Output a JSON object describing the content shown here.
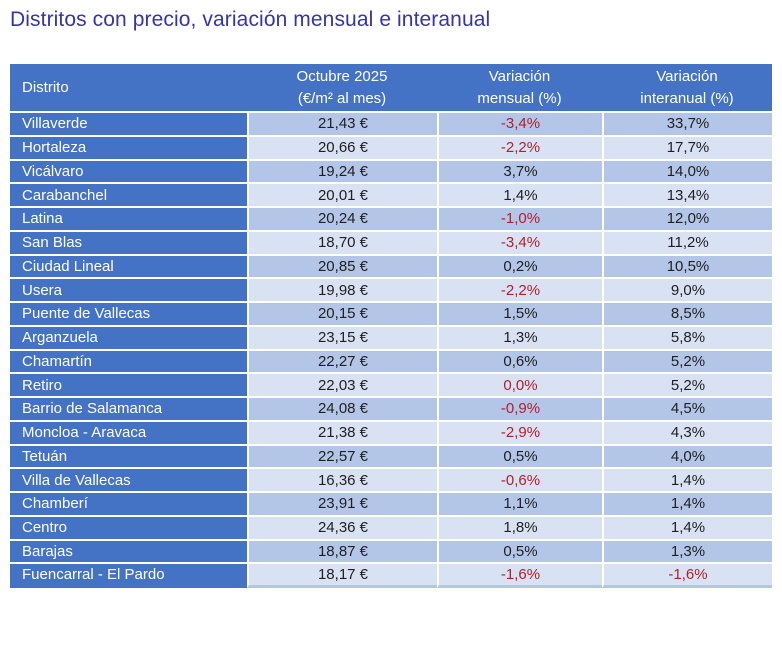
{
  "title": "Distritos con precio, variación mensual e interanual",
  "colors": {
    "title": "#3434AE",
    "header_bg": "#4472C4",
    "header_text": "#FFFFFF",
    "district_col_bg": "#4472C4",
    "row_band_dark": "#B4C6E7",
    "row_band_light": "#D9E2F3",
    "value_text": "#1F1F1F",
    "negative_value": "#B0202A"
  },
  "table": {
    "columns": [
      {
        "label": "Distrito",
        "sublabel": ""
      },
      {
        "label": "Octubre 2025",
        "sublabel": "(€/m² al mes)"
      },
      {
        "label": "Variación",
        "sublabel": "mensual (%)"
      },
      {
        "label": "Variación",
        "sublabel": "interanual (%)"
      }
    ],
    "rows": [
      {
        "district": "Villaverde",
        "price": "21,43 €",
        "monthly": "-3,4%",
        "monthly_red": true,
        "yearly": "33,7%",
        "yearly_red": false
      },
      {
        "district": "Hortaleza",
        "price": "20,66 €",
        "monthly": "-2,2%",
        "monthly_red": true,
        "yearly": "17,7%",
        "yearly_red": false
      },
      {
        "district": "Vicálvaro",
        "price": "19,24 €",
        "monthly": "3,7%",
        "monthly_red": false,
        "yearly": "14,0%",
        "yearly_red": false
      },
      {
        "district": "Carabanchel",
        "price": "20,01 €",
        "monthly": "1,4%",
        "monthly_red": false,
        "yearly": "13,4%",
        "yearly_red": false
      },
      {
        "district": "Latina",
        "price": "20,24 €",
        "monthly": "-1,0%",
        "monthly_red": true,
        "yearly": "12,0%",
        "yearly_red": false
      },
      {
        "district": "San Blas",
        "price": "18,70 €",
        "monthly": "-3,4%",
        "monthly_red": true,
        "yearly": "11,2%",
        "yearly_red": false
      },
      {
        "district": "Ciudad Lineal",
        "price": "20,85 €",
        "monthly": "0,2%",
        "monthly_red": false,
        "yearly": "10,5%",
        "yearly_red": false
      },
      {
        "district": "Usera",
        "price": "19,98 €",
        "monthly": "-2,2%",
        "monthly_red": true,
        "yearly": "9,0%",
        "yearly_red": false
      },
      {
        "district": "Puente de Vallecas",
        "price": "20,15 €",
        "monthly": "1,5%",
        "monthly_red": false,
        "yearly": "8,5%",
        "yearly_red": false
      },
      {
        "district": "Arganzuela",
        "price": "23,15 €",
        "monthly": "1,3%",
        "monthly_red": false,
        "yearly": "5,8%",
        "yearly_red": false
      },
      {
        "district": "Chamartín",
        "price": "22,27 €",
        "monthly": "0,6%",
        "monthly_red": false,
        "yearly": "5,2%",
        "yearly_red": false
      },
      {
        "district": "Retiro",
        "price": "22,03 €",
        "monthly": "0,0%",
        "monthly_red": true,
        "yearly": "5,2%",
        "yearly_red": false
      },
      {
        "district": "Barrio de Salamanca",
        "price": "24,08 €",
        "monthly": "-0,9%",
        "monthly_red": true,
        "yearly": "4,5%",
        "yearly_red": false
      },
      {
        "district": "Moncloa - Aravaca",
        "price": "21,38 €",
        "monthly": "-2,9%",
        "monthly_red": true,
        "yearly": "4,3%",
        "yearly_red": false
      },
      {
        "district": "Tetuán",
        "price": "22,57 €",
        "monthly": "0,5%",
        "monthly_red": false,
        "yearly": "4,0%",
        "yearly_red": false
      },
      {
        "district": "Villa de Vallecas",
        "price": "16,36 €",
        "monthly": "-0,6%",
        "monthly_red": true,
        "yearly": "1,4%",
        "yearly_red": false
      },
      {
        "district": "Chamberí",
        "price": "23,91 €",
        "monthly": "1,1%",
        "monthly_red": false,
        "yearly": "1,4%",
        "yearly_red": false
      },
      {
        "district": "Centro",
        "price": "24,36 €",
        "monthly": "1,8%",
        "monthly_red": false,
        "yearly": "1,4%",
        "yearly_red": false
      },
      {
        "district": "Barajas",
        "price": "18,87 €",
        "monthly": "0,5%",
        "monthly_red": false,
        "yearly": "1,3%",
        "yearly_red": false
      },
      {
        "district": "Fuencarral - El Pardo",
        "price": "18,17 €",
        "monthly": "-1,6%",
        "monthly_red": true,
        "yearly": "-1,6%",
        "yearly_red": true
      }
    ]
  },
  "chart_data": {
    "type": "table",
    "title": "Distritos con precio, variación mensual e interanual",
    "columns": [
      "Distrito",
      "Octubre 2025 (€/m² al mes)",
      "Variación mensual (%)",
      "Variación interanual (%)"
    ],
    "rows": [
      [
        "Villaverde",
        21.43,
        -3.4,
        33.7
      ],
      [
        "Hortaleza",
        20.66,
        -2.2,
        17.7
      ],
      [
        "Vicálvaro",
        19.24,
        3.7,
        14.0
      ],
      [
        "Carabanchel",
        20.01,
        1.4,
        13.4
      ],
      [
        "Latina",
        20.24,
        -1.0,
        12.0
      ],
      [
        "San Blas",
        18.7,
        -3.4,
        11.2
      ],
      [
        "Ciudad Lineal",
        20.85,
        0.2,
        10.5
      ],
      [
        "Usera",
        19.98,
        -2.2,
        9.0
      ],
      [
        "Puente de Vallecas",
        20.15,
        1.5,
        8.5
      ],
      [
        "Arganzuela",
        23.15,
        1.3,
        5.8
      ],
      [
        "Chamartín",
        22.27,
        0.6,
        5.2
      ],
      [
        "Retiro",
        22.03,
        0.0,
        5.2
      ],
      [
        "Barrio de Salamanca",
        24.08,
        -0.9,
        4.5
      ],
      [
        "Moncloa - Aravaca",
        21.38,
        -2.9,
        4.3
      ],
      [
        "Tetuán",
        22.57,
        0.5,
        4.0
      ],
      [
        "Villa de Vallecas",
        16.36,
        -0.6,
        1.4
      ],
      [
        "Chamberí",
        23.91,
        1.1,
        1.4
      ],
      [
        "Centro",
        24.36,
        1.8,
        1.4
      ],
      [
        "Barajas",
        18.87,
        0.5,
        1.3
      ],
      [
        "Fuencarral - El Pardo",
        18.17,
        -1.6,
        -1.6
      ]
    ]
  }
}
